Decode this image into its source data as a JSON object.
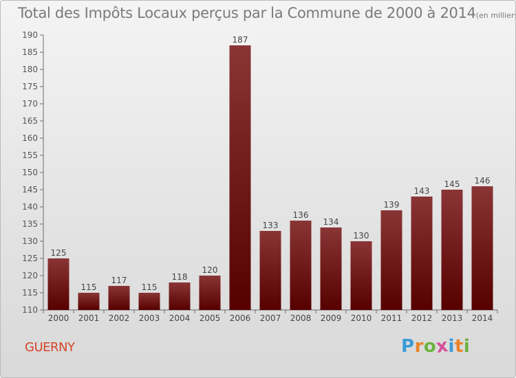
{
  "header": {
    "title": "Total des Impôts Locaux perçus par la Commune de 2000 à 2014",
    "unit": "(en milliers d'€)"
  },
  "footer": {
    "commune": "GUERNY",
    "logo_text": "Proxiti"
  },
  "colors": {
    "bar_top": "#8a3535",
    "bar_bottom": "#560000",
    "commune_text": "#d6452a",
    "logo_letters": [
      "#3a9bd5",
      "#e8842a",
      "#6cb33e",
      "#d64f9b",
      "#3a9bd5",
      "#e8842a",
      "#6cb33e"
    ]
  },
  "chart_data": {
    "type": "bar",
    "title": "Total des Impôts Locaux perçus par la Commune de 2000 à 2014",
    "categories": [
      "2000",
      "2001",
      "2002",
      "2003",
      "2004",
      "2005",
      "2006",
      "2007",
      "2008",
      "2009",
      "2010",
      "2011",
      "2012",
      "2013",
      "2014"
    ],
    "values": [
      125,
      115,
      117,
      115,
      118,
      120,
      187,
      133,
      136,
      134,
      130,
      139,
      143,
      145,
      146
    ],
    "ylim": [
      110,
      190
    ],
    "yticks": [
      110,
      115,
      120,
      125,
      130,
      135,
      140,
      145,
      150,
      155,
      160,
      165,
      170,
      175,
      180,
      185,
      190
    ],
    "grid": false,
    "legend": "none"
  }
}
